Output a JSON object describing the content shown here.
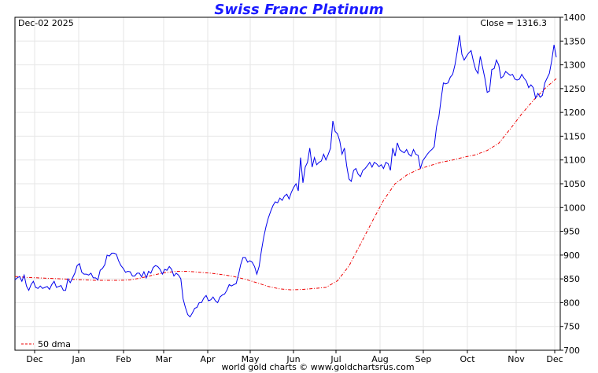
{
  "chart_data": {
    "type": "line",
    "title": "Swiss Franc Platinum",
    "date_label": "Dec-02  2025",
    "close_label": "Close = 1316.3",
    "footer": "world gold charts © www.goldchartsrus.com",
    "ylim": [
      700,
      1400
    ],
    "yticks": [
      "700",
      "750",
      "800",
      "850",
      "900",
      "950",
      "1000",
      "1050",
      "1100",
      "1150",
      "1200",
      "1250",
      "1300",
      "1350",
      "1400"
    ],
    "xticks": [
      "Dec",
      "Jan",
      "Feb",
      "Mar",
      "Apr",
      "May",
      "Jun",
      "Jul",
      "Aug",
      "Sep",
      "Oct",
      "Nov",
      "Dec"
    ],
    "grid": true,
    "legend_position": "bottom-left",
    "colors": {
      "price": "#0000ee",
      "dma": "#ee0000",
      "title": "#1a1aff"
    },
    "series": [
      {
        "name": "",
        "values": [
          848,
          852,
          855,
          845,
          858,
          835,
          826,
          838,
          845,
          832,
          830,
          835,
          830,
          832,
          834,
          828,
          838,
          845,
          832,
          834,
          836,
          826,
          826,
          850,
          842,
          852,
          862,
          878,
          882,
          864,
          860,
          860,
          858,
          862,
          852,
          852,
          848,
          868,
          872,
          880,
          900,
          898,
          904,
          904,
          902,
          888,
          878,
          872,
          864,
          866,
          865,
          856,
          856,
          862,
          862,
          854,
          865,
          852,
          866,
          862,
          874,
          878,
          876,
          870,
          860,
          870,
          868,
          876,
          870,
          856,
          862,
          858,
          850,
          808,
          790,
          775,
          770,
          778,
          788,
          790,
          800,
          800,
          810,
          815,
          804,
          806,
          812,
          804,
          800,
          812,
          816,
          818,
          826,
          838,
          835,
          838,
          840,
          858,
          880,
          895,
          895,
          885,
          888,
          885,
          876,
          860,
          876,
          910,
          938,
          960,
          978,
          992,
          1004,
          1012,
          1010,
          1020,
          1015,
          1024,
          1028,
          1018,
          1032,
          1042,
          1050,
          1035,
          1105,
          1052,
          1085,
          1095,
          1125,
          1085,
          1105,
          1090,
          1095,
          1098,
          1112,
          1100,
          1112,
          1125,
          1182,
          1160,
          1155,
          1140,
          1112,
          1125,
          1088,
          1060,
          1055,
          1078,
          1082,
          1070,
          1065,
          1078,
          1082,
          1088,
          1095,
          1085,
          1095,
          1092,
          1086,
          1090,
          1082,
          1095,
          1092,
          1078,
          1125,
          1108,
          1136,
          1122,
          1118,
          1115,
          1122,
          1112,
          1108,
          1122,
          1112,
          1110,
          1082,
          1098,
          1105,
          1112,
          1118,
          1122,
          1128,
          1170,
          1190,
          1228,
          1262,
          1260,
          1262,
          1274,
          1280,
          1300,
          1328,
          1362,
          1322,
          1310,
          1318,
          1325,
          1330,
          1308,
          1290,
          1282,
          1318,
          1295,
          1272,
          1242,
          1245,
          1290,
          1292,
          1310,
          1300,
          1272,
          1276,
          1286,
          1282,
          1278,
          1280,
          1270,
          1268,
          1270,
          1280,
          1272,
          1266,
          1252,
          1258,
          1252,
          1230,
          1240,
          1232,
          1236,
          1262,
          1272,
          1282,
          1308,
          1342,
          1316
        ],
        "dates": [
          "2024-12-02",
          "2025-12-02"
        ]
      },
      {
        "name": "50 dma",
        "values": [
          855,
          853,
          852,
          851,
          850,
          849,
          848,
          847,
          847,
          847,
          848,
          852,
          858,
          863,
          866,
          866,
          864,
          862,
          859,
          855,
          849,
          842,
          834,
          829,
          827,
          828,
          830,
          832,
          846,
          877,
          923,
          970,
          1015,
          1050,
          1068,
          1080,
          1088,
          1095,
          1100,
          1106,
          1111,
          1120,
          1135,
          1165,
          1197,
          1225,
          1250,
          1271
        ]
      }
    ]
  }
}
